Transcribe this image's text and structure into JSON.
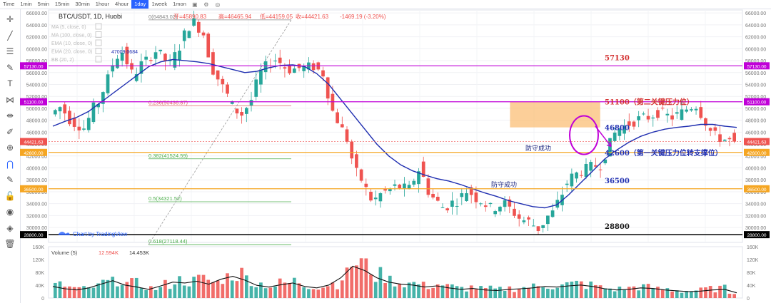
{
  "toolbar": {
    "timeframes": [
      "Time",
      "1min",
      "5min",
      "15min",
      "30min",
      "1hour",
      "4hour",
      "1day",
      "1week",
      "1mon"
    ],
    "active": "1day"
  },
  "left_tools": [
    "crosshair-icon",
    "trend-line-icon",
    "horizontal-lines-icon",
    "brush-icon",
    "text-icon",
    "pattern-icon",
    "measure-icon",
    "ruler-icon",
    "zoom-icon",
    "magnet-icon",
    "lock-drawing-icon",
    "unlock-icon",
    "eye-icon",
    "layers-icon",
    "trash-icon"
  ],
  "legend": {
    "symbol": "BTC/USDT, 1D, Huobi",
    "open_label": "开=45890.83",
    "high_label": "高=46465.94",
    "low_label": "低=44159.05",
    "close_label": "收=44421.63",
    "change_label": "-1469.19 (-3.20%)",
    "indicators": [
      "MA (5, close, 0)",
      "MA (100, close, 0)",
      "EMA (10, close, 0)",
      "EMA (20, close, 0)",
      "BB (20, 2)"
    ],
    "watermark": "Chart by TradingView"
  },
  "colors": {
    "up": "#26a69a",
    "down": "#ef5350",
    "ema": "#1f2eb0",
    "magenta": "#c000d8",
    "orange": "#f5a623",
    "black_line": "#000000",
    "zone_fill": "#fbbf77",
    "fib_red": "#e06060",
    "fib_green": "#4cae4c"
  },
  "chart_data": {
    "type": "candlestick",
    "title": "BTC/USDT, 1D, Huobi",
    "ylim": [
      27500,
      66500
    ],
    "y_ticks": [
      30000,
      32000,
      34000,
      36000,
      38000,
      40000,
      42000,
      44000,
      46000,
      48000,
      50000,
      52000,
      54000,
      56000,
      58000,
      60000,
      62000,
      64000,
      66000
    ],
    "grid": true,
    "ohlc_legend": {
      "open": 45890.83,
      "high": 46465.94,
      "low": 44159.05,
      "close": 44421.63,
      "change": -1469.19,
      "change_pct": -3.2
    },
    "price_path": [
      49000,
      50500,
      47500,
      46500,
      51000,
      56000,
      59500,
      55000,
      58000,
      60000,
      57500,
      61000,
      64500,
      62000,
      55000,
      51500,
      49000,
      52000,
      57000,
      58500,
      56500,
      56800,
      57000,
      55500,
      48000,
      44000,
      38000,
      34000,
      36000,
      37000,
      36500,
      40500,
      35000,
      33000,
      34500,
      36500,
      34500,
      33000,
      34000,
      32000,
      31000,
      29500,
      32500,
      36500,
      39000,
      40000,
      40500,
      45000,
      47000,
      48000,
      48500,
      49500,
      48500,
      49500,
      50500,
      47000,
      45000,
      44421.63
    ],
    "volume_path": [
      40000,
      32000,
      28000,
      35000,
      48000,
      60000,
      45000,
      38000,
      30000,
      42000,
      55000,
      52000,
      58000,
      48000,
      65000,
      75000,
      62000,
      44000,
      38000,
      46000,
      52000,
      40000,
      35000,
      45000,
      70000,
      110000,
      95000,
      70000,
      55000,
      48000,
      45000,
      38000,
      42000,
      35000,
      30000,
      33000,
      28000,
      26000,
      30000,
      32000,
      35000,
      40000,
      38000,
      42000,
      45000,
      40000,
      32000,
      28000,
      30000,
      35000,
      33000,
      28000,
      25000,
      22000,
      24000,
      28000,
      30000,
      18000
    ],
    "ema_path": [
      47000,
      47800,
      48500,
      49500,
      51000,
      52500,
      54000,
      55500,
      57000,
      57800,
      58200,
      58000,
      57800,
      57500,
      57000,
      56500,
      56000,
      56200,
      56800,
      57200,
      57300,
      57000,
      55800,
      54000,
      51500,
      49000,
      46500,
      44000,
      42000,
      40500,
      39500,
      38800,
      38200,
      37800,
      37200,
      36500,
      35800,
      35200,
      34500,
      34000,
      33500,
      33300,
      33800,
      35500,
      37500,
      39500,
      41500,
      43000,
      44300,
      45300,
      46000,
      46500,
      46800,
      47000,
      47300,
      47300,
      47000,
      46800
    ],
    "ema_legend_value": "47009.0684",
    "horizontal_levels": [
      {
        "price": 57130,
        "label": "57130",
        "axis_label": "57130.00",
        "color": "#c000d8"
      },
      {
        "price": 51100,
        "label": "51100（第二关键压力位）",
        "axis_label": "51100.00",
        "color": "#c000d8"
      },
      {
        "price": 46800,
        "label": "46800",
        "color": "#1f2eb0"
      },
      {
        "price": 42600,
        "label": "42600（第一关键压力位转支撑位）",
        "axis_label": "42600.00",
        "color": "#f5a623"
      },
      {
        "price": 36500,
        "label": "36500",
        "axis_label": "36500.00",
        "color": "#f5a623"
      },
      {
        "price": 28800,
        "label": "28800",
        "axis_label": "28800.00",
        "color": "#000000"
      }
    ],
    "current_price_label": "44421.63",
    "fibonacci": [
      {
        "ratio": "0(64843.02)",
        "price": 64843.02,
        "color": "#888888"
      },
      {
        "ratio": "0.236(50436.87)",
        "price": 50436.87,
        "color": "#e06060"
      },
      {
        "ratio": "0.382(41524.59)",
        "price": 41524.59,
        "color": "#4cae4c"
      },
      {
        "ratio": "0.5(34321.52)",
        "price": 34321.52,
        "color": "#4cae4c"
      },
      {
        "ratio": "0.618(27118.44)",
        "price": 27118.44,
        "color": "#4cae4c"
      }
    ],
    "annotations": [
      {
        "text": "防守成功",
        "price": 42600
      },
      {
        "text": "防守成功",
        "price": 36500
      }
    ],
    "volume": {
      "title": "Volume (5)",
      "value_1": "12.594K",
      "value_2": "14.453K",
      "ylim": [
        0,
        160000
      ],
      "y_ticks": [
        "0",
        "40K",
        "80K",
        "120K",
        "160K"
      ]
    }
  }
}
